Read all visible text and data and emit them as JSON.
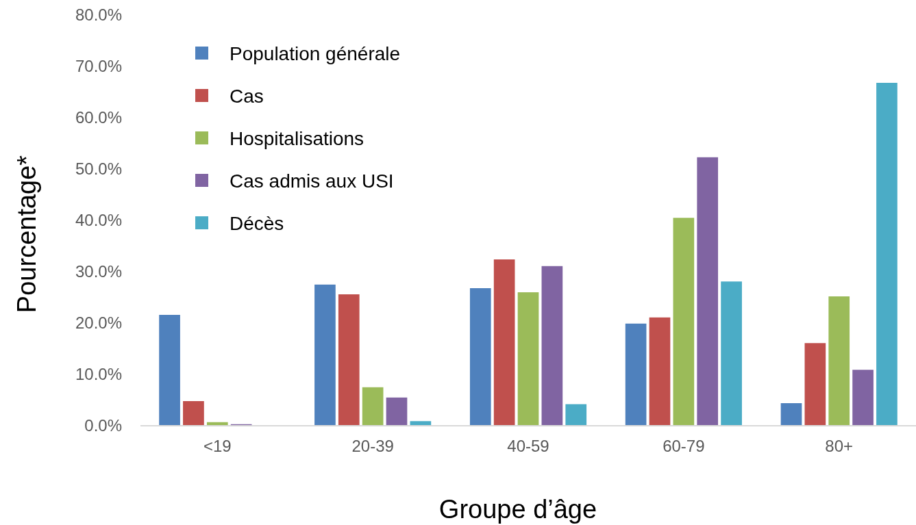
{
  "chart_data": {
    "type": "bar",
    "xlabel": "Groupe d’âge",
    "ylabel": "Pourcentage*",
    "categories": [
      "<19",
      "20-39",
      "40-59",
      "60-79",
      "80+"
    ],
    "series": [
      {
        "name": "Population générale",
        "color": "#4f81bd",
        "values": [
          21.6,
          27.5,
          26.8,
          19.9,
          4.4
        ]
      },
      {
        "name": "Cas",
        "color": "#c0504d",
        "values": [
          4.8,
          25.6,
          32.4,
          21.1,
          16.1
        ]
      },
      {
        "name": "Hospitalisations",
        "color": "#9bbb59",
        "values": [
          0.7,
          7.5,
          26.0,
          40.5,
          25.2
        ]
      },
      {
        "name": "Cas admis aux USI",
        "color": "#8064a2",
        "values": [
          0.3,
          5.5,
          31.1,
          52.3,
          10.9
        ]
      },
      {
        "name": "Décès",
        "color": "#4bacc6",
        "values": [
          0,
          0.9,
          4.2,
          28.1,
          66.8
        ]
      }
    ],
    "ylim": [
      0,
      80
    ],
    "yticks": [
      {
        "value": 0,
        "label": "0.0%"
      },
      {
        "value": 10,
        "label": "10.0%"
      },
      {
        "value": 20,
        "label": "20.0%"
      },
      {
        "value": 30,
        "label": "30.0%"
      },
      {
        "value": 40,
        "label": "40.0%"
      },
      {
        "value": 50,
        "label": "50.0%"
      },
      {
        "value": 60,
        "label": "60.0%"
      },
      {
        "value": 70,
        "label": "70.0%"
      },
      {
        "value": 80,
        "label": "80.0%"
      }
    ],
    "grid": false,
    "legend": "top left"
  }
}
